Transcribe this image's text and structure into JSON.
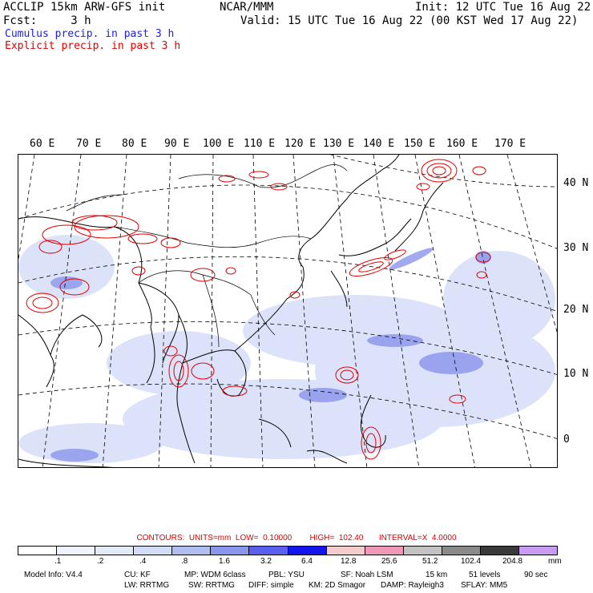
{
  "header": {
    "left_line1": "ACCLIP 15km ARW-GFS init",
    "left_line2": "Fcst:     3 h",
    "center": "NCAR/MMM",
    "right_line1": "Init: 12 UTC Tue 16 Aug 22",
    "right_line2": "Valid: 15 UTC Tue 16 Aug 22 (00 KST Wed 17 Aug 22)",
    "legend_cumulus": "Cumulus precip. in past 3 h",
    "legend_explicit": "Explicit precip. in past 3 h"
  },
  "map": {
    "longitude_labels": [
      "60 E",
      "70 E",
      "80 E",
      "90 E",
      "100 E",
      "110 E",
      "120 E",
      "130 E",
      "140 E",
      "150 E",
      "160 E",
      "170 E"
    ],
    "latitude_labels": [
      "40 N",
      "30 N",
      "20 N",
      "10 N",
      "0"
    ]
  },
  "contours": {
    "text": "CONTOURS:  UNITS=mm  LOW=  0.10000        HIGH=  102.40       INTERVAL=X  4.0000"
  },
  "colorbar": {
    "colors": [
      "#ffffff",
      "#f0f4fc",
      "#e2eaf8",
      "#d2dcf6",
      "#b0bdf0",
      "#8a95ec",
      "#5b5ff0",
      "#1414ee",
      "#f5cccc",
      "#f098b8",
      "#c3c3c3",
      "#8a8a8a",
      "#3a3a3a",
      "#c89cf0"
    ],
    "labels": [
      ".1",
      ".2",
      ".4",
      ".8",
      "1.6",
      "3.2",
      "6.4",
      "12.8",
      "25.6",
      "51.2",
      "102.4",
      "204.8"
    ],
    "unit": "mm"
  },
  "footer": {
    "model_info": "Model Info: V4.4",
    "cu": "CU: KF",
    "mp": "MP: WDM 6class",
    "pbl": "PBL: YSU",
    "sf": "SF: Noah LSM",
    "res": "15 km",
    "levels": "51 levels",
    "dt": "90 sec",
    "lw": "LW: RRTMG",
    "sw": "SW: RRTMG",
    "diff": "DIFF: simple",
    "km": "KM: 2D Smagor",
    "damp": "DAMP: Rayleigh3",
    "sflay": "SFLAY: MM5"
  }
}
